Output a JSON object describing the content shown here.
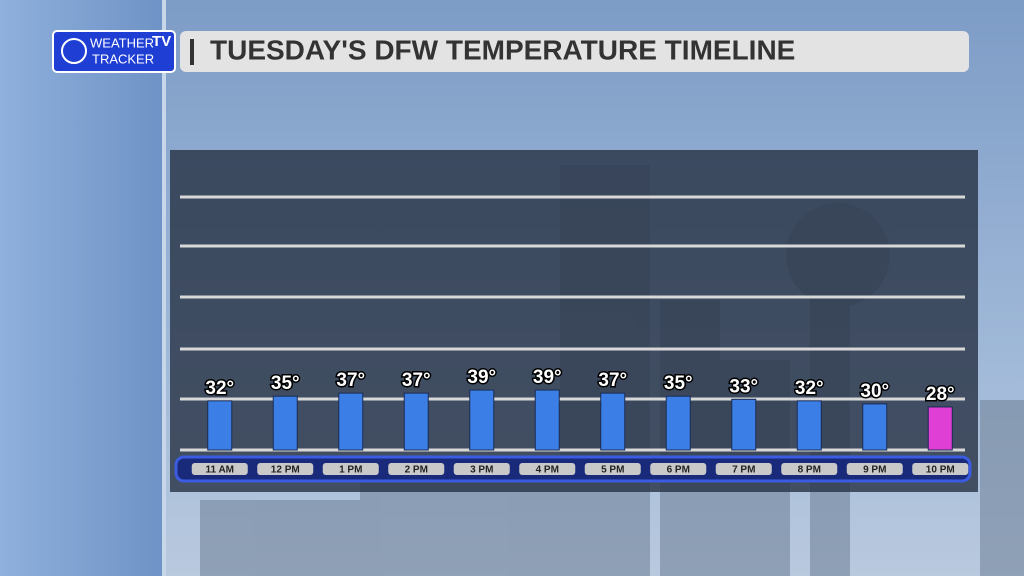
{
  "logo": {
    "line1": "WEATHER",
    "line2": "TRACKER",
    "badge": "TV"
  },
  "chart_data": {
    "type": "bar",
    "title": "TUESDAY'S DFW TEMPERATURE TIMELINE",
    "categories": [
      "11 AM",
      "12 PM",
      "1 PM",
      "2 PM",
      "3 PM",
      "4 PM",
      "5 PM",
      "6 PM",
      "7 PM",
      "8 PM",
      "9 PM",
      "10 PM"
    ],
    "values": [
      32,
      35,
      37,
      37,
      39,
      39,
      37,
      35,
      33,
      32,
      30,
      28
    ],
    "value_labels": [
      "32°",
      "35°",
      "37°",
      "37°",
      "39°",
      "39°",
      "37°",
      "35°",
      "33°",
      "32°",
      "30°",
      "28°"
    ],
    "colors": [
      "#3b7fe6",
      "#3b7fe6",
      "#3b7fe6",
      "#3b7fe6",
      "#3b7fe6",
      "#3b7fe6",
      "#3b7fe6",
      "#3b7fe6",
      "#3b7fe6",
      "#3b7fe6",
      "#3b7fe6",
      "#e03fd6"
    ],
    "ylim": [
      0,
      190
    ]
  }
}
